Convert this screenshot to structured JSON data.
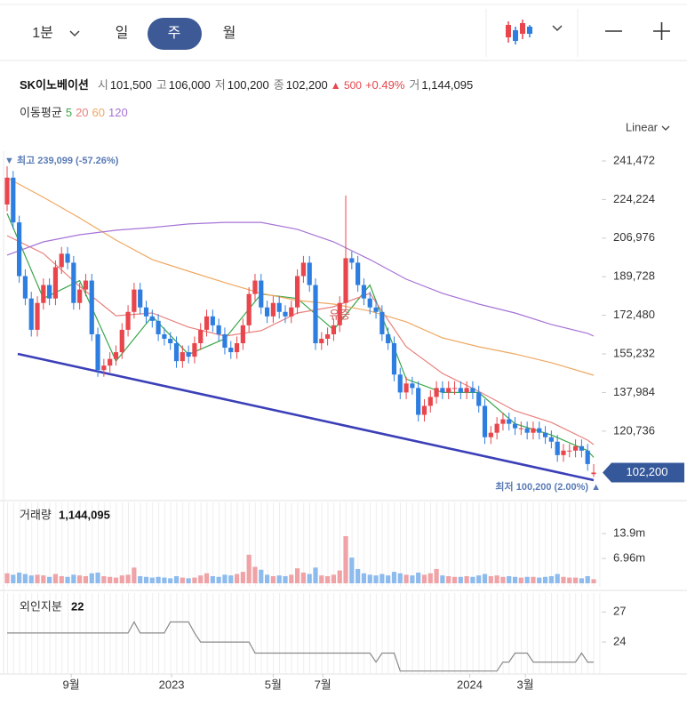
{
  "toolbar": {
    "tabs": [
      "1분",
      "일",
      "주",
      "월"
    ]
  },
  "quote": {
    "name": "SK이노베이션",
    "items": [
      {
        "label": "시",
        "value": "101,500"
      },
      {
        "label": "고",
        "value": "106,000"
      },
      {
        "label": "저",
        "value": "100,200"
      },
      {
        "label": "종",
        "value": "102,200"
      }
    ],
    "change": "▲ 500",
    "change_pct": "+0.49%",
    "volume_label": "거",
    "volume": "1,144,095"
  },
  "chart_data": {
    "type": "candlestick",
    "scale_label": "Linear",
    "up_color": "#e8464c",
    "down_color": "#2d7ee0",
    "candles": [
      [
        222000,
        239099,
        219000,
        234000
      ],
      [
        234000,
        237000,
        211000,
        214000
      ],
      [
        214000,
        217000,
        187000,
        190000
      ],
      [
        190000,
        193000,
        177000,
        180000
      ],
      [
        180000,
        183000,
        163000,
        166000
      ],
      [
        166000,
        181000,
        163000,
        178000
      ],
      [
        178000,
        189000,
        175000,
        186000
      ],
      [
        186000,
        189000,
        177000,
        180000
      ],
      [
        180000,
        197000,
        177000,
        194000
      ],
      [
        194000,
        203000,
        191000,
        200000
      ],
      [
        200000,
        203000,
        193000,
        196000
      ],
      [
        196000,
        199000,
        175000,
        178000
      ],
      [
        178000,
        187000,
        175000,
        184000
      ],
      [
        184000,
        191000,
        181000,
        188000
      ],
      [
        188000,
        191000,
        161000,
        164000
      ],
      [
        164000,
        167000,
        145000,
        148000
      ],
      [
        148000,
        153000,
        145000,
        150000
      ],
      [
        150000,
        156000,
        147000,
        153000
      ],
      [
        153000,
        159000,
        150000,
        156000
      ],
      [
        156000,
        169000,
        153000,
        166000
      ],
      [
        166000,
        177000,
        163000,
        174000
      ],
      [
        174000,
        187000,
        171000,
        184000
      ],
      [
        184000,
        187000,
        173000,
        176000
      ],
      [
        176000,
        179000,
        169000,
        172000
      ],
      [
        172000,
        175000,
        167000,
        170000
      ],
      [
        170000,
        173000,
        161000,
        164000
      ],
      [
        164000,
        167000,
        159000,
        162000
      ],
      [
        162000,
        165000,
        157000,
        160000
      ],
      [
        160000,
        163000,
        149000,
        152000
      ],
      [
        152000,
        159000,
        149000,
        156000
      ],
      [
        156000,
        159000,
        151000,
        154000
      ],
      [
        154000,
        163000,
        151000,
        160000
      ],
      [
        160000,
        169000,
        157000,
        166000
      ],
      [
        166000,
        175000,
        163000,
        172000
      ],
      [
        172000,
        175000,
        165000,
        168000
      ],
      [
        168000,
        171000,
        161000,
        164000
      ],
      [
        164000,
        167000,
        155000,
        158000
      ],
      [
        158000,
        161000,
        153000,
        156000
      ],
      [
        156000,
        163000,
        153000,
        160000
      ],
      [
        160000,
        171000,
        157000,
        168000
      ],
      [
        168000,
        185000,
        165000,
        182000
      ],
      [
        182000,
        191000,
        179000,
        188000
      ],
      [
        188000,
        191000,
        173000,
        176000
      ],
      [
        176000,
        179000,
        169000,
        172000
      ],
      [
        172000,
        181000,
        169000,
        178000
      ],
      [
        178000,
        181000,
        171000,
        174000
      ],
      [
        174000,
        177000,
        169000,
        172000
      ],
      [
        172000,
        179000,
        169000,
        176000
      ],
      [
        176000,
        193000,
        173000,
        190000
      ],
      [
        190000,
        199000,
        187000,
        196000
      ],
      [
        196000,
        199000,
        183000,
        186000
      ],
      [
        186000,
        189000,
        157000,
        160000
      ],
      [
        160000,
        165000,
        157000,
        162000
      ],
      [
        162000,
        167000,
        159000,
        164000
      ],
      [
        164000,
        171000,
        161000,
        168000
      ],
      [
        168000,
        181000,
        165000,
        178000
      ],
      [
        178000,
        226000,
        175000,
        198000
      ],
      [
        198000,
        201000,
        193000,
        196000
      ],
      [
        196000,
        199000,
        183000,
        186000
      ],
      [
        186000,
        189000,
        177000,
        180000
      ],
      [
        180000,
        183000,
        173000,
        176000
      ],
      [
        176000,
        179000,
        171000,
        174000
      ],
      [
        174000,
        177000,
        161000,
        164000
      ],
      [
        164000,
        167000,
        157000,
        160000
      ],
      [
        160000,
        163000,
        143000,
        146000
      ],
      [
        146000,
        149000,
        135000,
        138000
      ],
      [
        138000,
        145000,
        135000,
        142000
      ],
      [
        142000,
        145000,
        137000,
        140000
      ],
      [
        140000,
        143000,
        125000,
        128000
      ],
      [
        128000,
        135000,
        125000,
        132000
      ],
      [
        132000,
        139000,
        129000,
        136000
      ],
      [
        136000,
        143000,
        133000,
        140000
      ],
      [
        140000,
        143000,
        135000,
        138000
      ],
      [
        138000,
        143000,
        135000,
        140000
      ],
      [
        140000,
        143000,
        137000,
        140000
      ],
      [
        140000,
        143000,
        135000,
        138000
      ],
      [
        138000,
        143000,
        135000,
        140000
      ],
      [
        140000,
        143000,
        135000,
        138000
      ],
      [
        138000,
        141000,
        129000,
        132000
      ],
      [
        132000,
        135000,
        115000,
        118000
      ],
      [
        118000,
        123000,
        115000,
        120000
      ],
      [
        120000,
        127000,
        117000,
        124000
      ],
      [
        124000,
        129000,
        121000,
        126000
      ],
      [
        126000,
        129000,
        121000,
        124000
      ],
      [
        124000,
        127000,
        119000,
        122000
      ],
      [
        122000,
        125000,
        119000,
        122000
      ],
      [
        122000,
        125000,
        117000,
        120000
      ],
      [
        120000,
        125000,
        117000,
        122000
      ],
      [
        122000,
        125000,
        117000,
        120000
      ],
      [
        120000,
        123000,
        115000,
        118000
      ],
      [
        118000,
        121000,
        113000,
        116000
      ],
      [
        116000,
        119000,
        107000,
        110000
      ],
      [
        110000,
        115000,
        107000,
        112000
      ],
      [
        112000,
        115000,
        109000,
        112000
      ],
      [
        112000,
        117000,
        109000,
        114000
      ],
      [
        114000,
        117000,
        109000,
        112000
      ],
      [
        112000,
        115000,
        103000,
        106000
      ],
      [
        101500,
        106000,
        100200,
        102200
      ]
    ],
    "ylim": [
      92450,
      245840
    ],
    "yticks": [
      {
        "value": 241472,
        "label": "241,472"
      },
      {
        "value": 224224,
        "label": "224,224"
      },
      {
        "value": 206976,
        "label": "206,976"
      },
      {
        "value": 189728,
        "label": "189,728"
      },
      {
        "value": 172480,
        "label": "172,480"
      },
      {
        "value": 155232,
        "label": "155,232"
      },
      {
        "value": 137984,
        "label": "137,984"
      },
      {
        "value": 120736,
        "label": "120,736"
      }
    ],
    "current_price": {
      "value": 102200,
      "label": "102,200"
    },
    "max_label": "▼ 최고 239,099 (-57.26%)",
    "min_label": "최저 100,200 (2.00%) ▲",
    "annotation": "유증",
    "ma": {
      "title": "이동평균",
      "x": [
        0,
        6,
        12,
        18,
        24,
        30,
        36,
        42,
        48,
        54,
        60,
        66,
        72,
        78,
        84,
        90,
        96,
        97
      ],
      "series": [
        {
          "name": "5",
          "color": "#3aa64a",
          "values": [
            218000,
            180000,
            188000,
            152000,
            172000,
            155000,
            162000,
            182000,
            180000,
            166000,
            186000,
            144000,
            138000,
            138000,
            124000,
            119000,
            112000,
            109000
          ]
        },
        {
          "name": "20",
          "color": "#e8827e",
          "values": [
            208100,
            200100,
            185400,
            172300,
            173500,
            167200,
            163200,
            165600,
            173500,
            176300,
            182300,
            158400,
            146500,
            138500,
            129800,
            124600,
            116700,
            114700
          ]
        },
        {
          "name": "60",
          "color": "#f0a862",
          "values": [
            233900,
            225200,
            216000,
            206100,
            197400,
            192200,
            187100,
            182300,
            179100,
            177500,
            174400,
            169600,
            162400,
            158400,
            155200,
            151300,
            146500,
            145700
          ]
        },
        {
          "name": "120",
          "color": "#a673d6",
          "values": [
            199400,
            205300,
            208500,
            210500,
            211700,
            213300,
            214000,
            214000,
            210900,
            205300,
            197400,
            188600,
            182300,
            177500,
            173500,
            168400,
            164400,
            163200
          ]
        }
      ]
    },
    "volume": {
      "label": "거래량",
      "value_label": "1,144,095",
      "up_color": "#f0a3a6",
      "down_color": "#8dbbee",
      "ylim": [
        0,
        21900000
      ],
      "yticks": [
        {
          "value": 13900000,
          "label": "13.9m"
        },
        {
          "value": 6960000,
          "label": "6.96m"
        }
      ],
      "values": [
        2800000,
        2400000,
        3000000,
        2600000,
        2200000,
        2400000,
        2200000,
        1800000,
        2600000,
        2000000,
        1800000,
        2400000,
        2200000,
        2000000,
        2800000,
        3000000,
        2000000,
        1800000,
        1600000,
        2200000,
        2400000,
        4400000,
        2000000,
        1800000,
        1600000,
        1800000,
        1600000,
        1400000,
        2000000,
        1600000,
        1400000,
        1600000,
        2200000,
        2800000,
        2000000,
        1800000,
        2400000,
        2200000,
        2600000,
        3200000,
        8000000,
        4600000,
        3800000,
        2400000,
        2000000,
        2200000,
        2000000,
        2400000,
        4200000,
        3000000,
        2600000,
        4400000,
        2200000,
        2000000,
        2400000,
        3600000,
        13200000,
        7200000,
        4000000,
        2800000,
        2400000,
        2200000,
        2600000,
        2200000,
        3200000,
        2800000,
        2400000,
        2200000,
        3000000,
        2400000,
        2800000,
        4000000,
        2200000,
        2000000,
        1800000,
        1800000,
        2000000,
        1800000,
        2200000,
        2600000,
        2000000,
        2200000,
        1800000,
        2000000,
        1800000,
        1600000,
        1800000,
        1800000,
        1600000,
        1800000,
        2000000,
        2600000,
        1800000,
        1600000,
        1600000,
        1400000,
        2000000,
        1144095
      ]
    },
    "foreign": {
      "label": "외인지분",
      "value_label": "22",
      "color": "#8a8a8a",
      "ylim": [
        20.9,
        28.8
      ],
      "yticks": [
        27,
        24
      ],
      "values": [
        24.9,
        24.9,
        24.9,
        24.9,
        24.9,
        24.9,
        24.9,
        24.9,
        24.9,
        24.9,
        24.9,
        24.9,
        24.9,
        24.9,
        24.9,
        24.9,
        24.9,
        24.9,
        24.9,
        24.9,
        24.9,
        26.0,
        24.9,
        24.9,
        24.9,
        24.9,
        24.9,
        26.0,
        26.0,
        26.0,
        26.0,
        24.9,
        24.0,
        24.0,
        24.0,
        24.0,
        24.0,
        24.0,
        24.0,
        24.0,
        24.0,
        22.9,
        22.9,
        22.9,
        22.9,
        22.9,
        22.9,
        22.9,
        22.9,
        22.9,
        22.9,
        22.9,
        22.9,
        22.9,
        22.9,
        22.9,
        22.9,
        22.9,
        22.9,
        22.9,
        22.9,
        22.0,
        22.9,
        22.9,
        22.9,
        21.1,
        21.1,
        21.1,
        21.1,
        21.1,
        21.1,
        21.1,
        21.1,
        21.1,
        21.1,
        21.1,
        21.1,
        21.1,
        21.1,
        21.1,
        21.1,
        21.1,
        22.0,
        22.0,
        22.9,
        22.9,
        22.9,
        22.0,
        22.0,
        22.0,
        22.0,
        22.0,
        22.0,
        22.0,
        22.0,
        22.9,
        22.0,
        22.0
      ]
    },
    "xticks": [
      {
        "value": 10.6,
        "label": "9월"
      },
      {
        "value": 27.2,
        "label": "2023"
      },
      {
        "value": 44,
        "label": "5월"
      },
      {
        "value": 52.2,
        "label": "7월"
      },
      {
        "value": 76.5,
        "label": "2024"
      },
      {
        "value": 85.7,
        "label": "3월"
      }
    ]
  }
}
